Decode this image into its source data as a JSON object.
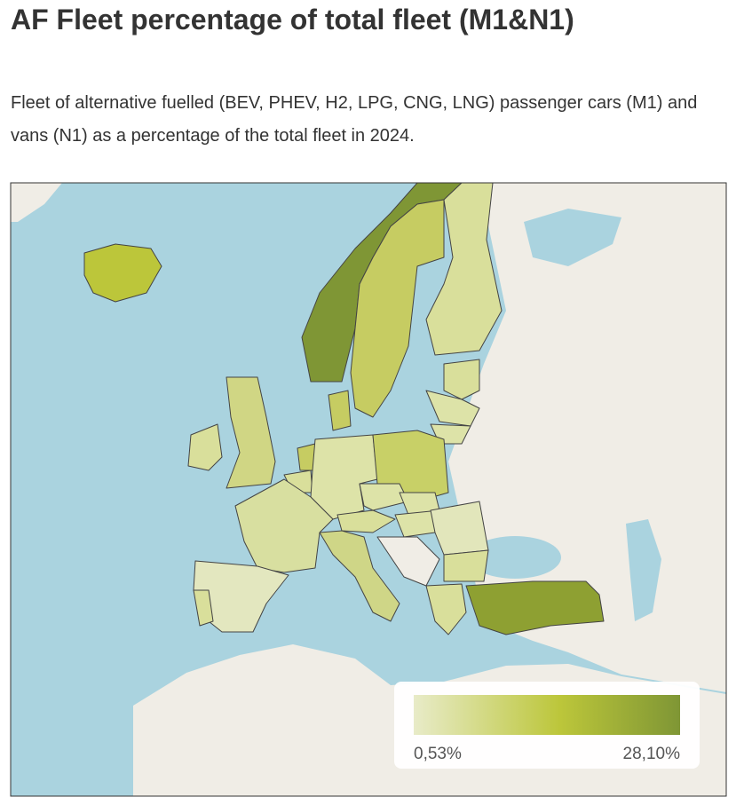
{
  "header": {
    "title": "AF Fleet percentage of total fleet (M1&N1)",
    "subtitle": "Fleet of alternative fuelled (BEV, PHEV, H2, LPG, CNG, LNG) passenger cars (M1) and vans (N1) as a percentage of the total fleet in 2024."
  },
  "legend": {
    "min_label": "0,53%",
    "max_label": "28,10%"
  }
}
